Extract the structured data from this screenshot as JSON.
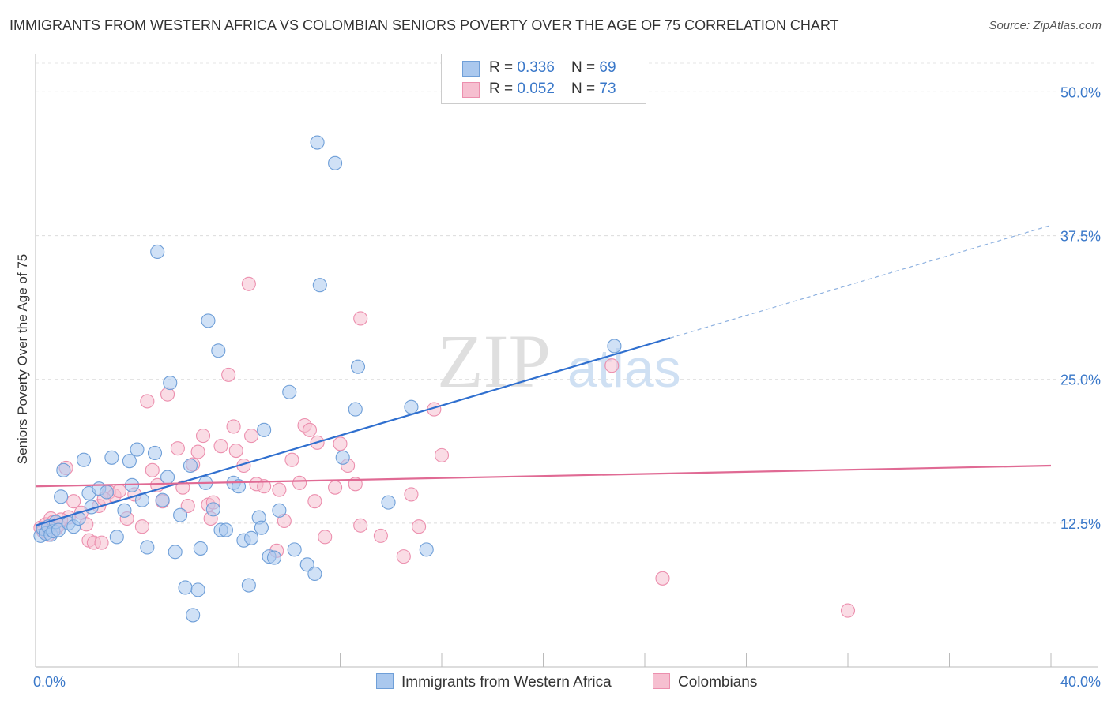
{
  "title": "IMMIGRANTS FROM WESTERN AFRICA VS COLOMBIAN SENIORS POVERTY OVER THE AGE OF 75 CORRELATION CHART",
  "source": "Source: ZipAtlas.com",
  "watermark": {
    "zip": "ZIP",
    "atlas": "atlas"
  },
  "legend": {
    "series1": {
      "r_label": "R = ",
      "r_value": "0.336",
      "n_label": "N = ",
      "n_value": "69"
    },
    "series2": {
      "r_label": "R = ",
      "r_value": "0.052",
      "n_label": "N = ",
      "n_value": "73"
    }
  },
  "chart_data": {
    "type": "scatter",
    "title": "IMMIGRANTS FROM WESTERN AFRICA VS COLOMBIAN SENIORS POVERTY OVER THE AGE OF 75 CORRELATION CHART",
    "xlabel": "",
    "ylabel": "Seniors Poverty Over the Age of 75",
    "xlim": [
      0,
      40
    ],
    "ylim": [
      0,
      52.5
    ],
    "x_tick_labels": [
      "0.0%",
      "40.0%"
    ],
    "y_ticks": [
      12.5,
      25.0,
      37.5,
      50.0
    ],
    "y_tick_labels": [
      "12.5%",
      "25.0%",
      "37.5%",
      "50.0%"
    ],
    "legend_position": "top-center",
    "colors": {
      "series1_fill": "#aac8ee",
      "series1_stroke": "#6f9fd8",
      "series1_line": "#2f6fcf",
      "series2_fill": "#f6bfd0",
      "series2_stroke": "#ec8fae",
      "series2_line": "#e06a94"
    },
    "series": [
      {
        "name": "Immigrants from Western Africa",
        "trend": {
          "x": [
            0,
            25
          ],
          "y": [
            12.3,
            28.6
          ],
          "dashed_to": [
            40,
            38.4
          ]
        },
        "points": [
          [
            0.2,
            11.4
          ],
          [
            0.3,
            12.0
          ],
          [
            0.4,
            11.6
          ],
          [
            0.5,
            12.2
          ],
          [
            0.6,
            11.5
          ],
          [
            0.7,
            11.8
          ],
          [
            0.8,
            12.6
          ],
          [
            0.9,
            11.9
          ],
          [
            1.0,
            14.8
          ],
          [
            1.1,
            17.1
          ],
          [
            1.3,
            12.5
          ],
          [
            1.5,
            12.2
          ],
          [
            1.7,
            12.9
          ],
          [
            1.9,
            18.0
          ],
          [
            2.1,
            15.1
          ],
          [
            2.2,
            13.9
          ],
          [
            2.5,
            15.5
          ],
          [
            2.8,
            15.2
          ],
          [
            3.0,
            18.2
          ],
          [
            3.2,
            11.3
          ],
          [
            3.5,
            13.6
          ],
          [
            3.7,
            17.9
          ],
          [
            3.8,
            15.8
          ],
          [
            4.0,
            18.9
          ],
          [
            4.2,
            14.5
          ],
          [
            4.4,
            10.4
          ],
          [
            4.7,
            18.6
          ],
          [
            4.8,
            36.1
          ],
          [
            5.0,
            14.5
          ],
          [
            5.2,
            16.5
          ],
          [
            5.3,
            24.7
          ],
          [
            5.5,
            10.0
          ],
          [
            5.7,
            13.2
          ],
          [
            5.9,
            6.9
          ],
          [
            6.1,
            17.5
          ],
          [
            6.2,
            4.5
          ],
          [
            6.4,
            6.7
          ],
          [
            6.5,
            10.3
          ],
          [
            6.7,
            16.0
          ],
          [
            6.8,
            30.1
          ],
          [
            7.0,
            13.7
          ],
          [
            7.2,
            27.5
          ],
          [
            7.3,
            11.9
          ],
          [
            7.5,
            11.9
          ],
          [
            7.8,
            16.0
          ],
          [
            8.0,
            15.7
          ],
          [
            8.2,
            11.0
          ],
          [
            8.4,
            7.1
          ],
          [
            8.5,
            11.2
          ],
          [
            8.8,
            13.0
          ],
          [
            8.9,
            12.1
          ],
          [
            9.0,
            20.6
          ],
          [
            9.2,
            9.6
          ],
          [
            9.4,
            9.5
          ],
          [
            9.6,
            13.6
          ],
          [
            10.0,
            23.9
          ],
          [
            10.2,
            10.2
          ],
          [
            10.7,
            8.9
          ],
          [
            11.0,
            8.1
          ],
          [
            11.2,
            33.2
          ],
          [
            12.1,
            18.2
          ],
          [
            11.8,
            43.8
          ],
          [
            11.1,
            45.6
          ],
          [
            12.6,
            22.4
          ],
          [
            12.7,
            26.1
          ],
          [
            13.9,
            14.3
          ],
          [
            14.8,
            22.6
          ],
          [
            15.4,
            10.2
          ],
          [
            22.8,
            27.9
          ]
        ]
      },
      {
        "name": "Colombians",
        "trend": {
          "x": [
            0,
            40
          ],
          "y": [
            15.7,
            17.5
          ]
        },
        "points": [
          [
            0.2,
            12.1
          ],
          [
            0.3,
            11.8
          ],
          [
            0.4,
            12.4
          ],
          [
            0.5,
            11.5
          ],
          [
            0.6,
            12.9
          ],
          [
            0.7,
            12.6
          ],
          [
            0.8,
            12.0
          ],
          [
            0.9,
            12.3
          ],
          [
            1.2,
            17.3
          ],
          [
            1.3,
            13.0
          ],
          [
            1.5,
            14.4
          ],
          [
            1.8,
            13.4
          ],
          [
            2.0,
            12.4
          ],
          [
            2.1,
            11.0
          ],
          [
            2.3,
            10.8
          ],
          [
            2.5,
            14.0
          ],
          [
            2.6,
            10.8
          ],
          [
            2.9,
            15.2
          ],
          [
            3.1,
            14.9
          ],
          [
            3.3,
            15.3
          ],
          [
            3.6,
            12.9
          ],
          [
            3.9,
            15.0
          ],
          [
            4.2,
            12.2
          ],
          [
            4.4,
            23.1
          ],
          [
            4.6,
            17.1
          ],
          [
            4.8,
            15.8
          ],
          [
            5.0,
            14.4
          ],
          [
            5.2,
            23.7
          ],
          [
            5.6,
            19.0
          ],
          [
            5.8,
            15.6
          ],
          [
            6.0,
            14.0
          ],
          [
            6.2,
            17.6
          ],
          [
            6.4,
            18.7
          ],
          [
            6.6,
            20.1
          ],
          [
            6.8,
            14.1
          ],
          [
            7.0,
            14.3
          ],
          [
            7.3,
            19.2
          ],
          [
            7.6,
            25.4
          ],
          [
            7.8,
            20.9
          ],
          [
            7.9,
            18.8
          ],
          [
            8.2,
            17.5
          ],
          [
            8.4,
            33.3
          ],
          [
            8.5,
            20.1
          ],
          [
            8.7,
            15.9
          ],
          [
            9.0,
            15.7
          ],
          [
            9.5,
            10.1
          ],
          [
            9.6,
            15.4
          ],
          [
            9.8,
            12.7
          ],
          [
            10.1,
            18.0
          ],
          [
            10.4,
            16.0
          ],
          [
            10.6,
            21.0
          ],
          [
            10.8,
            20.6
          ],
          [
            11.0,
            14.4
          ],
          [
            11.1,
            19.5
          ],
          [
            11.4,
            11.3
          ],
          [
            11.8,
            15.6
          ],
          [
            12.0,
            19.4
          ],
          [
            12.3,
            17.5
          ],
          [
            12.6,
            15.9
          ],
          [
            12.8,
            30.3
          ],
          [
            12.8,
            12.3
          ],
          [
            13.6,
            11.4
          ],
          [
            14.5,
            9.6
          ],
          [
            14.8,
            15.0
          ],
          [
            15.1,
            12.2
          ],
          [
            15.7,
            22.4
          ],
          [
            16.0,
            18.4
          ],
          [
            22.7,
            26.2
          ],
          [
            24.7,
            7.7
          ],
          [
            32.0,
            4.9
          ],
          [
            1.0,
            12.8
          ],
          [
            6.9,
            12.9
          ],
          [
            2.7,
            14.6
          ]
        ]
      }
    ]
  },
  "bottom_legend": {
    "series1": "Immigrants from Western Africa",
    "series2": "Colombians"
  }
}
